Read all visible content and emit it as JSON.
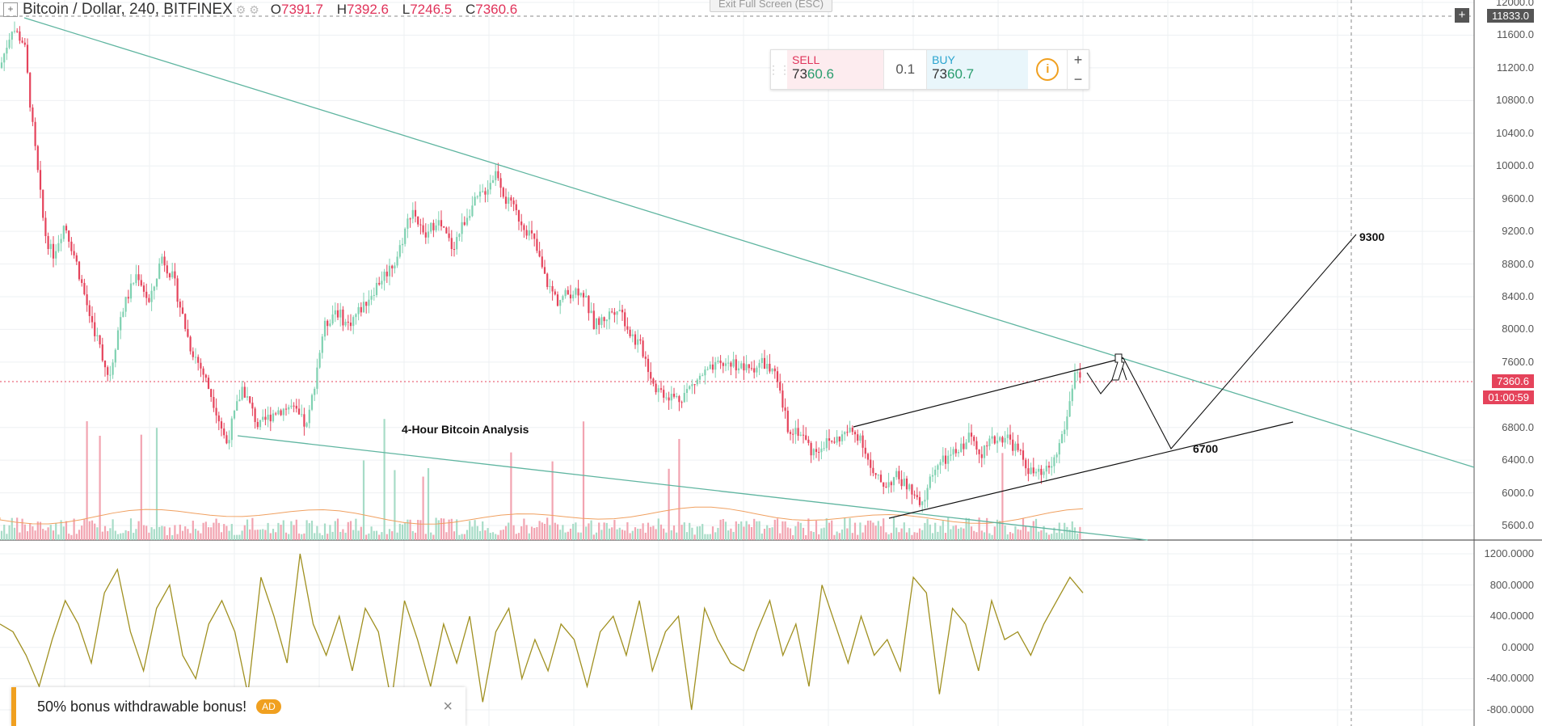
{
  "header": {
    "title": "Bitcoin / Dollar, 240, BITFINEX",
    "open_label": "O",
    "open_value": "7391.7",
    "high_label": "H",
    "high_value": "7392.6",
    "low_label": "L",
    "low_value": "7246.5",
    "close_label": "C",
    "close_value": "7360.6"
  },
  "exit_fullscreen": "Exit Full Screen (ESC)",
  "trade_panel": {
    "sell_label": "SELL",
    "sell_price_a": "73",
    "sell_price_b": "60.6",
    "quantity": "0.1",
    "buy_label": "BUY",
    "buy_price_a": "73",
    "buy_price_b": "60.7",
    "info_icon": "i",
    "plus": "+",
    "minus": "−"
  },
  "ad": {
    "text": "50% bonus withdrawable bonus!",
    "tag": "AD",
    "close": "×"
  },
  "colors": {
    "up": "#7fd1b1",
    "down": "#e5435b",
    "trend": "#5fb5a0",
    "oscillator": "#a09020",
    "last_price": "#e5435b"
  },
  "chart_data": [
    {
      "type": "candlestick",
      "symbol": "Bitcoin / Dollar",
      "interval": "240",
      "exchange": "BITFINEX",
      "ylim": [
        5400,
        12000
      ],
      "y_ticks": [
        "12000.0",
        "11600.0",
        "11200.0",
        "10800.0",
        "10400.0",
        "10000.0",
        "9600.0",
        "9200.0",
        "8800.0",
        "8400.0",
        "8000.0",
        "7600.0",
        "6800.0",
        "6400.0",
        "6000.0",
        "5600.0"
      ],
      "last_price": "7360.6",
      "countdown": "01:00:59",
      "crosshair_price": "11833.0",
      "close_path": [
        [
          0,
          11200
        ],
        [
          15,
          11700
        ],
        [
          30,
          11500
        ],
        [
          40,
          10500
        ],
        [
          55,
          9200
        ],
        [
          65,
          8900
        ],
        [
          80,
          9300
        ],
        [
          95,
          8800
        ],
        [
          110,
          8200
        ],
        [
          120,
          7900
        ],
        [
          135,
          7400
        ],
        [
          150,
          8200
        ],
        [
          170,
          8700
        ],
        [
          185,
          8300
        ],
        [
          200,
          8900
        ],
        [
          215,
          8600
        ],
        [
          235,
          7800
        ],
        [
          250,
          7500
        ],
        [
          265,
          7100
        ],
        [
          280,
          6600
        ],
        [
          300,
          7300
        ],
        [
          320,
          6800
        ],
        [
          340,
          7000
        ],
        [
          360,
          7050
        ],
        [
          380,
          6800
        ],
        [
          400,
          8000
        ],
        [
          415,
          8250
        ],
        [
          430,
          8050
        ],
        [
          450,
          8300
        ],
        [
          470,
          8600
        ],
        [
          490,
          8850
        ],
        [
          510,
          9500
        ],
        [
          525,
          9100
        ],
        [
          540,
          9350
        ],
        [
          560,
          9000
        ],
        [
          580,
          9450
        ],
        [
          600,
          9700
        ],
        [
          615,
          9950
        ],
        [
          625,
          9600
        ],
        [
          640,
          9400
        ],
        [
          660,
          9100
        ],
        [
          675,
          8600
        ],
        [
          690,
          8350
        ],
        [
          705,
          8450
        ],
        [
          720,
          8500
        ],
        [
          735,
          8050
        ],
        [
          750,
          8150
        ],
        [
          765,
          8300
        ],
        [
          780,
          7950
        ],
        [
          795,
          7750
        ],
        [
          810,
          7300
        ],
        [
          825,
          7200
        ],
        [
          840,
          7150
        ],
        [
          855,
          7300
        ],
        [
          870,
          7450
        ],
        [
          890,
          7550
        ],
        [
          905,
          7600
        ],
        [
          925,
          7500
        ],
        [
          945,
          7600
        ],
        [
          960,
          7400
        ],
        [
          975,
          6800
        ],
        [
          990,
          6750
        ],
        [
          1005,
          6500
        ],
        [
          1020,
          6600
        ],
        [
          1035,
          6650
        ],
        [
          1050,
          6750
        ],
        [
          1065,
          6700
        ],
        [
          1080,
          6200
        ],
        [
          1095,
          6100
        ],
        [
          1110,
          6200
        ],
        [
          1125,
          6050
        ],
        [
          1140,
          5800
        ],
        [
          1155,
          6300
        ],
        [
          1170,
          6400
        ],
        [
          1185,
          6500
        ],
        [
          1200,
          6700
        ],
        [
          1215,
          6500
        ],
        [
          1230,
          6650
        ],
        [
          1245,
          6700
        ],
        [
          1260,
          6500
        ],
        [
          1275,
          6250
        ],
        [
          1290,
          6200
        ],
        [
          1305,
          6400
        ],
        [
          1320,
          6900
        ],
        [
          1330,
          7500
        ],
        [
          1340,
          7360.6
        ]
      ],
      "drawings": {
        "annotations": [
          "4-Hour Bitcoin Analysis",
          "9300",
          "6700"
        ]
      }
    },
    {
      "type": "line",
      "ylim": [
        -900,
        1300
      ],
      "y_ticks": [
        "1200.0000",
        "800.0000",
        "400.0000",
        "0.0000",
        "-400.0000",
        "-800.0000"
      ],
      "series": [
        {
          "values": [
            300,
            200,
            -100,
            -500,
            100,
            600,
            300,
            -200,
            700,
            1000,
            200,
            -300,
            500,
            800,
            -100,
            -400,
            300,
            600,
            200,
            -600,
            900,
            400,
            -200,
            1200,
            300,
            -100,
            400,
            -300,
            500,
            200,
            -700,
            600,
            100,
            -500,
            300,
            -200,
            400,
            -700,
            200,
            500,
            -400,
            100,
            -300,
            300,
            100,
            -500,
            200,
            400,
            -100,
            600,
            -300,
            200,
            400,
            -800,
            500,
            100,
            -200,
            -300,
            200,
            600,
            -100,
            300,
            -500,
            800,
            300,
            -200,
            400,
            -100,
            100,
            -300,
            900,
            700,
            -600,
            500,
            300,
            -300,
            600,
            100,
            200,
            -100,
            300,
            600,
            900,
            700
          ]
        }
      ]
    }
  ]
}
